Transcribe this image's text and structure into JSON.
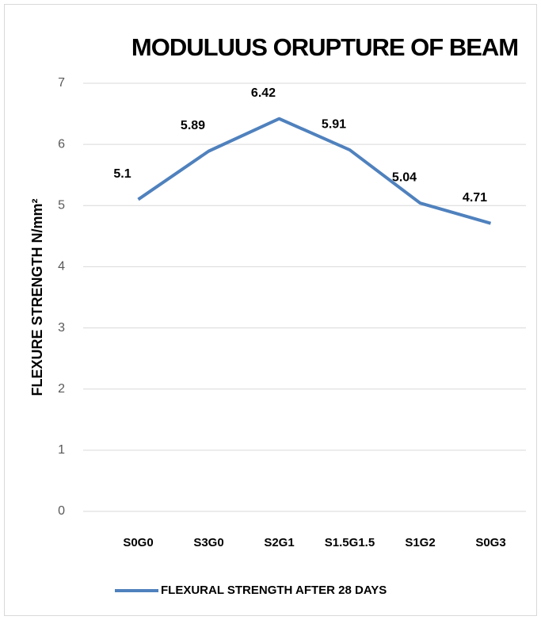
{
  "chart_data": {
    "type": "line",
    "title": "MODULUUS ORUPTURE OF BEAM",
    "y_label": "FLEXURE STRENGTH N/mm²",
    "categories": [
      "S0G0",
      "S3G0",
      "S2G1",
      "S1.5G1.5",
      "S1G2",
      "S0G3"
    ],
    "series": [
      {
        "name": "FLEXURAL STRENGTH AFTER 28 DAYS",
        "color": "#4f81bd",
        "values": [
          5.1,
          5.89,
          6.42,
          5.91,
          5.04,
          4.71
        ]
      }
    ],
    "ylim": [
      0,
      7
    ],
    "yticks": [
      0,
      1,
      2,
      3,
      4,
      5,
      6,
      7
    ],
    "grid": true,
    "legend": "bottom"
  }
}
